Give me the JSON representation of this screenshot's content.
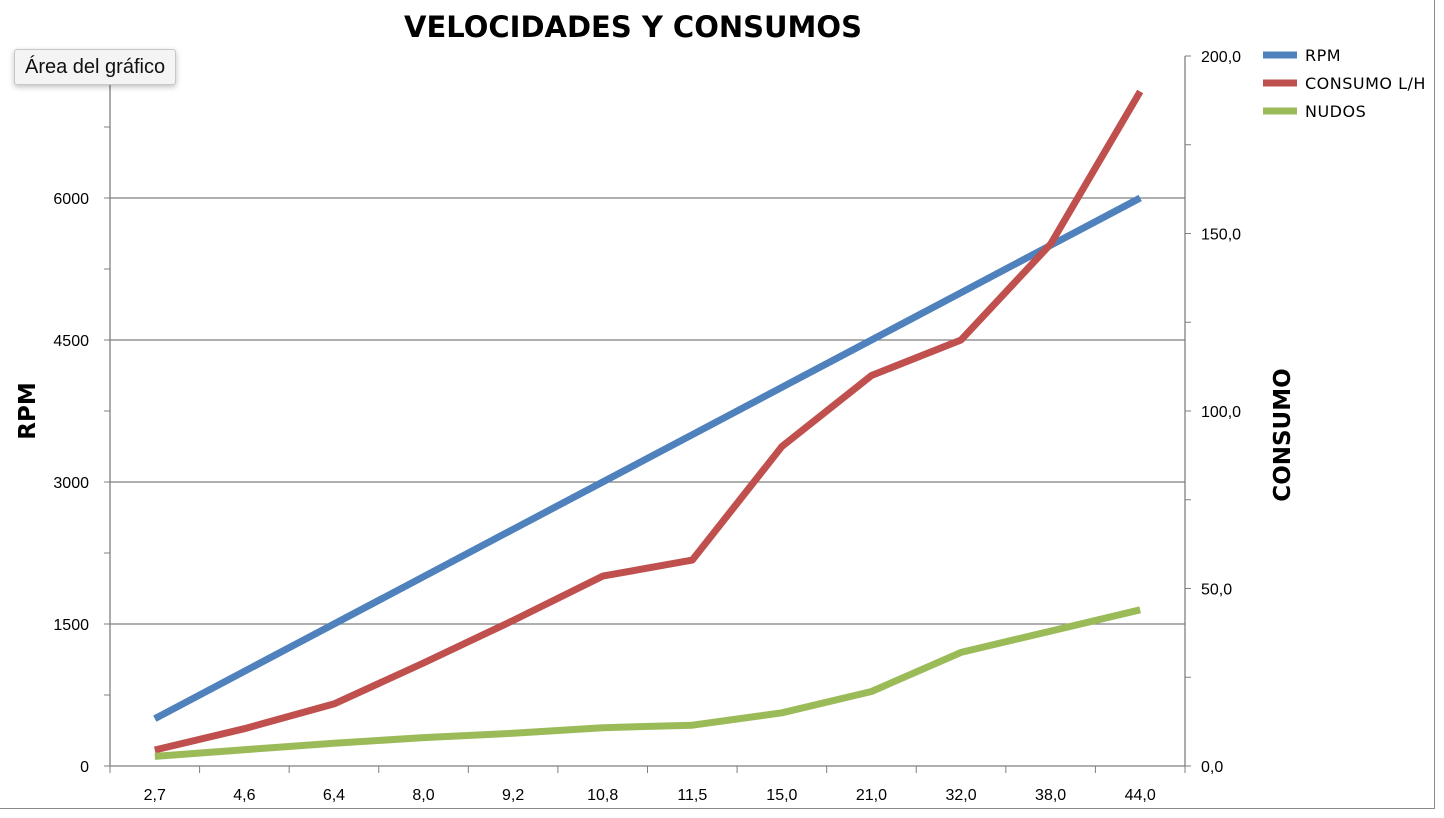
{
  "tooltip": {
    "label": "Área del gráfico"
  },
  "chart_data": {
    "type": "line",
    "title": "VELOCIDADES Y CONSUMOS",
    "categories": [
      "2,7",
      "4,6",
      "6,4",
      "8,0",
      "9,2",
      "10,8",
      "11,5",
      "15,0",
      "21,0",
      "32,0",
      "38,0",
      "44,0"
    ],
    "y_left": {
      "label": "RPM",
      "min": 0,
      "max": 7500,
      "ticks": [
        0,
        1500,
        3000,
        4500,
        6000
      ],
      "tick_labels": [
        "0",
        "1500",
        "3000",
        "4500",
        "6000"
      ],
      "gridlines": true
    },
    "y_right": {
      "label": "CONSUMO",
      "min": 0,
      "max": 200,
      "ticks": [
        0,
        50,
        100,
        150,
        200
      ],
      "tick_labels": [
        "0,0",
        "50,0",
        "100,0",
        "150,0",
        "200,0"
      ]
    },
    "legend_position": "top-right",
    "series": [
      {
        "name": "RPM",
        "axis": "left",
        "color": "#4F81BD",
        "values": [
          500,
          1000,
          1500,
          2000,
          2500,
          3000,
          3500,
          4000,
          4500,
          5000,
          5500,
          6000
        ]
      },
      {
        "name": "CONSUMO L/H",
        "axis": "right",
        "color": "#C0504D",
        "values": [
          4.5,
          10.5,
          17.5,
          29,
          41,
          53.5,
          58,
          90,
          110,
          120,
          147,
          190
        ]
      },
      {
        "name": "NUDOS",
        "axis": "right",
        "color": "#9BBB59",
        "values": [
          2.7,
          4.6,
          6.4,
          8.0,
          9.2,
          10.8,
          11.5,
          15.0,
          21.0,
          32.0,
          38.0,
          44.0
        ]
      }
    ]
  }
}
